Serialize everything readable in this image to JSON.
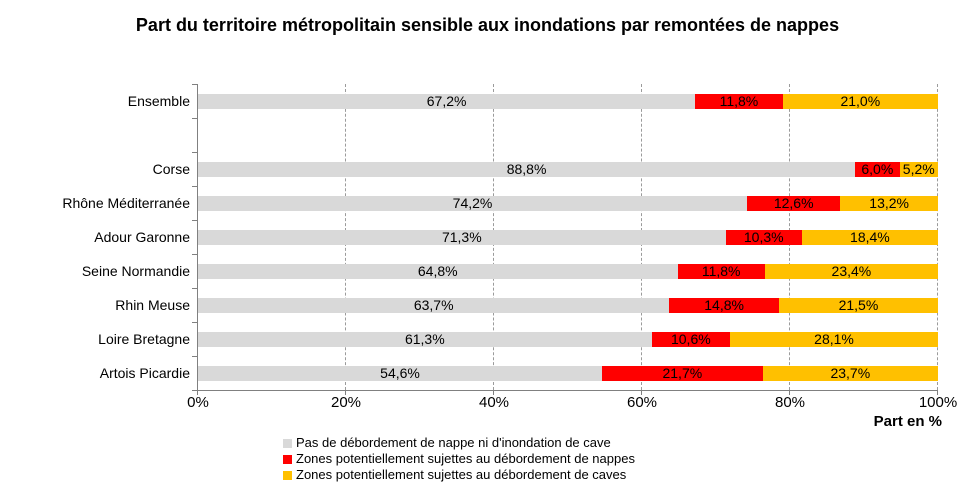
{
  "chart_data": {
    "type": "bar",
    "orientation": "horizontal",
    "stacked": true,
    "title": "Part du territoire métropolitain sensible aux inondations par remontées de nappes",
    "xlabel": "Part en %",
    "x_range": [
      0,
      100
    ],
    "x_ticks": [
      {
        "value": 0,
        "label": "0%"
      },
      {
        "value": 20,
        "label": "20%"
      },
      {
        "value": 40,
        "label": "40%"
      },
      {
        "value": 60,
        "label": "60%"
      },
      {
        "value": 80,
        "label": "80%"
      },
      {
        "value": 100,
        "label": "100%"
      }
    ],
    "grid": {
      "vertical_dashed_at": [
        20,
        40,
        60,
        80,
        100
      ]
    },
    "legend_position": "bottom-left-of-center",
    "categories": [
      "Ensemble",
      "",
      "Corse",
      "Rhône Méditerranée",
      "Adour Garonne",
      "Seine Normandie",
      "Rhin Meuse",
      "Loire Bretagne",
      "Artois Picardie"
    ],
    "series": [
      {
        "name": "Pas de débordement de nappe ni d'inondation de cave",
        "color": "#D9D9D9",
        "values": [
          67.2,
          null,
          88.8,
          74.2,
          71.3,
          64.8,
          63.7,
          61.3,
          54.6
        ],
        "labels": [
          "67,2%",
          "",
          "88,8%",
          "74,2%",
          "71,3%",
          "64,8%",
          "63,7%",
          "61,3%",
          "54,6%"
        ]
      },
      {
        "name": "Zones potentiellement sujettes au débordement de nappes",
        "color": "#FF0000",
        "values": [
          11.8,
          null,
          6.0,
          12.6,
          10.3,
          11.8,
          14.8,
          10.6,
          21.7
        ],
        "labels": [
          "11,8%",
          "",
          "6,0%",
          "12,6%",
          "10,3%",
          "11,8%",
          "14,8%",
          "10,6%",
          "21,7%"
        ]
      },
      {
        "name": "Zones potentiellement sujettes au débordement de caves",
        "color": "#FFC000",
        "values": [
          21.0,
          null,
          5.2,
          13.2,
          18.4,
          23.4,
          21.5,
          28.1,
          23.7
        ],
        "labels": [
          "21,0%",
          "",
          "5,2%",
          "13,2%",
          "18,4%",
          "23,4%",
          "21,5%",
          "28,1%",
          "23,7%"
        ]
      }
    ],
    "colors": {
      "no_risk": "#D9D9D9",
      "nappes": "#FF0000",
      "caves": "#FFC000",
      "axis": "#808080",
      "grid": "#9B9B9B"
    }
  }
}
